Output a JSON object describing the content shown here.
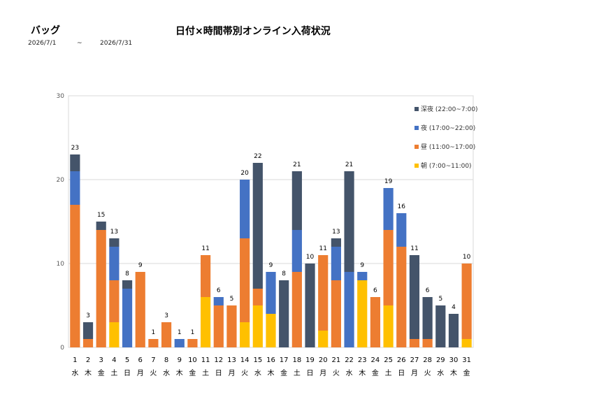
{
  "header": {
    "category": "バッグ",
    "title": "日付×時間帯別オンライン入荷状況",
    "date_from": "2026/7/1",
    "tilde": "~",
    "date_to": "2026/7/31"
  },
  "colors": {
    "deep_night": "#44546A",
    "night": "#4472C4",
    "day": "#ED7D31",
    "morning": "#FFC000",
    "grid": "#D9D9D9"
  },
  "chart_data": {
    "type": "bar",
    "stacked": true,
    "ylim": [
      0,
      30
    ],
    "yticks": [
      0,
      10,
      20,
      30
    ],
    "grid": true,
    "legend_position": "right",
    "categories": [
      "1",
      "2",
      "3",
      "4",
      "5",
      "6",
      "7",
      "8",
      "9",
      "10",
      "11",
      "12",
      "13",
      "14",
      "15",
      "16",
      "17",
      "18",
      "19",
      "20",
      "21",
      "22",
      "23",
      "24",
      "25",
      "26",
      "27",
      "28",
      "29",
      "30",
      "31"
    ],
    "weekdays": [
      "水",
      "木",
      "金",
      "土",
      "日",
      "月",
      "火",
      "水",
      "木",
      "金",
      "土",
      "日",
      "月",
      "火",
      "水",
      "木",
      "金",
      "土",
      "日",
      "月",
      "火",
      "水",
      "木",
      "金",
      "土",
      "日",
      "月",
      "火",
      "水",
      "木",
      "金"
    ],
    "series": [
      {
        "name": "朝 (7:00~11:00)",
        "color": "#FFC000",
        "values": [
          0,
          0,
          0,
          3,
          0,
          0,
          0,
          0,
          0,
          0,
          6,
          0,
          0,
          3,
          5,
          4,
          0,
          0,
          0,
          2,
          0,
          0,
          8,
          0,
          5,
          0,
          0,
          0,
          0,
          0,
          1
        ]
      },
      {
        "name": "昼 (11:00~17:00)",
        "color": "#ED7D31",
        "values": [
          17,
          1,
          14,
          5,
          0,
          9,
          1,
          3,
          0,
          1,
          5,
          5,
          5,
          10,
          2,
          0,
          0,
          9,
          0,
          9,
          8,
          0,
          0,
          6,
          9,
          12,
          1,
          1,
          0,
          0,
          9
        ]
      },
      {
        "name": "夜 (17:00~22:00)",
        "color": "#4472C4",
        "values": [
          4,
          0,
          0,
          4,
          7,
          0,
          0,
          0,
          1,
          0,
          0,
          1,
          0,
          7,
          0,
          5,
          0,
          5,
          0,
          0,
          4,
          9,
          1,
          0,
          5,
          4,
          0,
          0,
          0,
          0,
          0
        ]
      },
      {
        "name": "深夜 (22:00~7:00)",
        "color": "#44546A",
        "values": [
          2,
          2,
          1,
          1,
          1,
          0,
          0,
          0,
          0,
          0,
          0,
          0,
          0,
          0,
          15,
          0,
          8,
          7,
          10,
          0,
          1,
          12,
          0,
          0,
          0,
          0,
          10,
          5,
          5,
          4,
          0
        ]
      }
    ],
    "totals": [
      23,
      3,
      15,
      13,
      8,
      9,
      1,
      3,
      1,
      1,
      11,
      6,
      5,
      20,
      22,
      9,
      8,
      21,
      10,
      11,
      13,
      21,
      9,
      6,
      19,
      16,
      11,
      6,
      5,
      4,
      10
    ]
  }
}
